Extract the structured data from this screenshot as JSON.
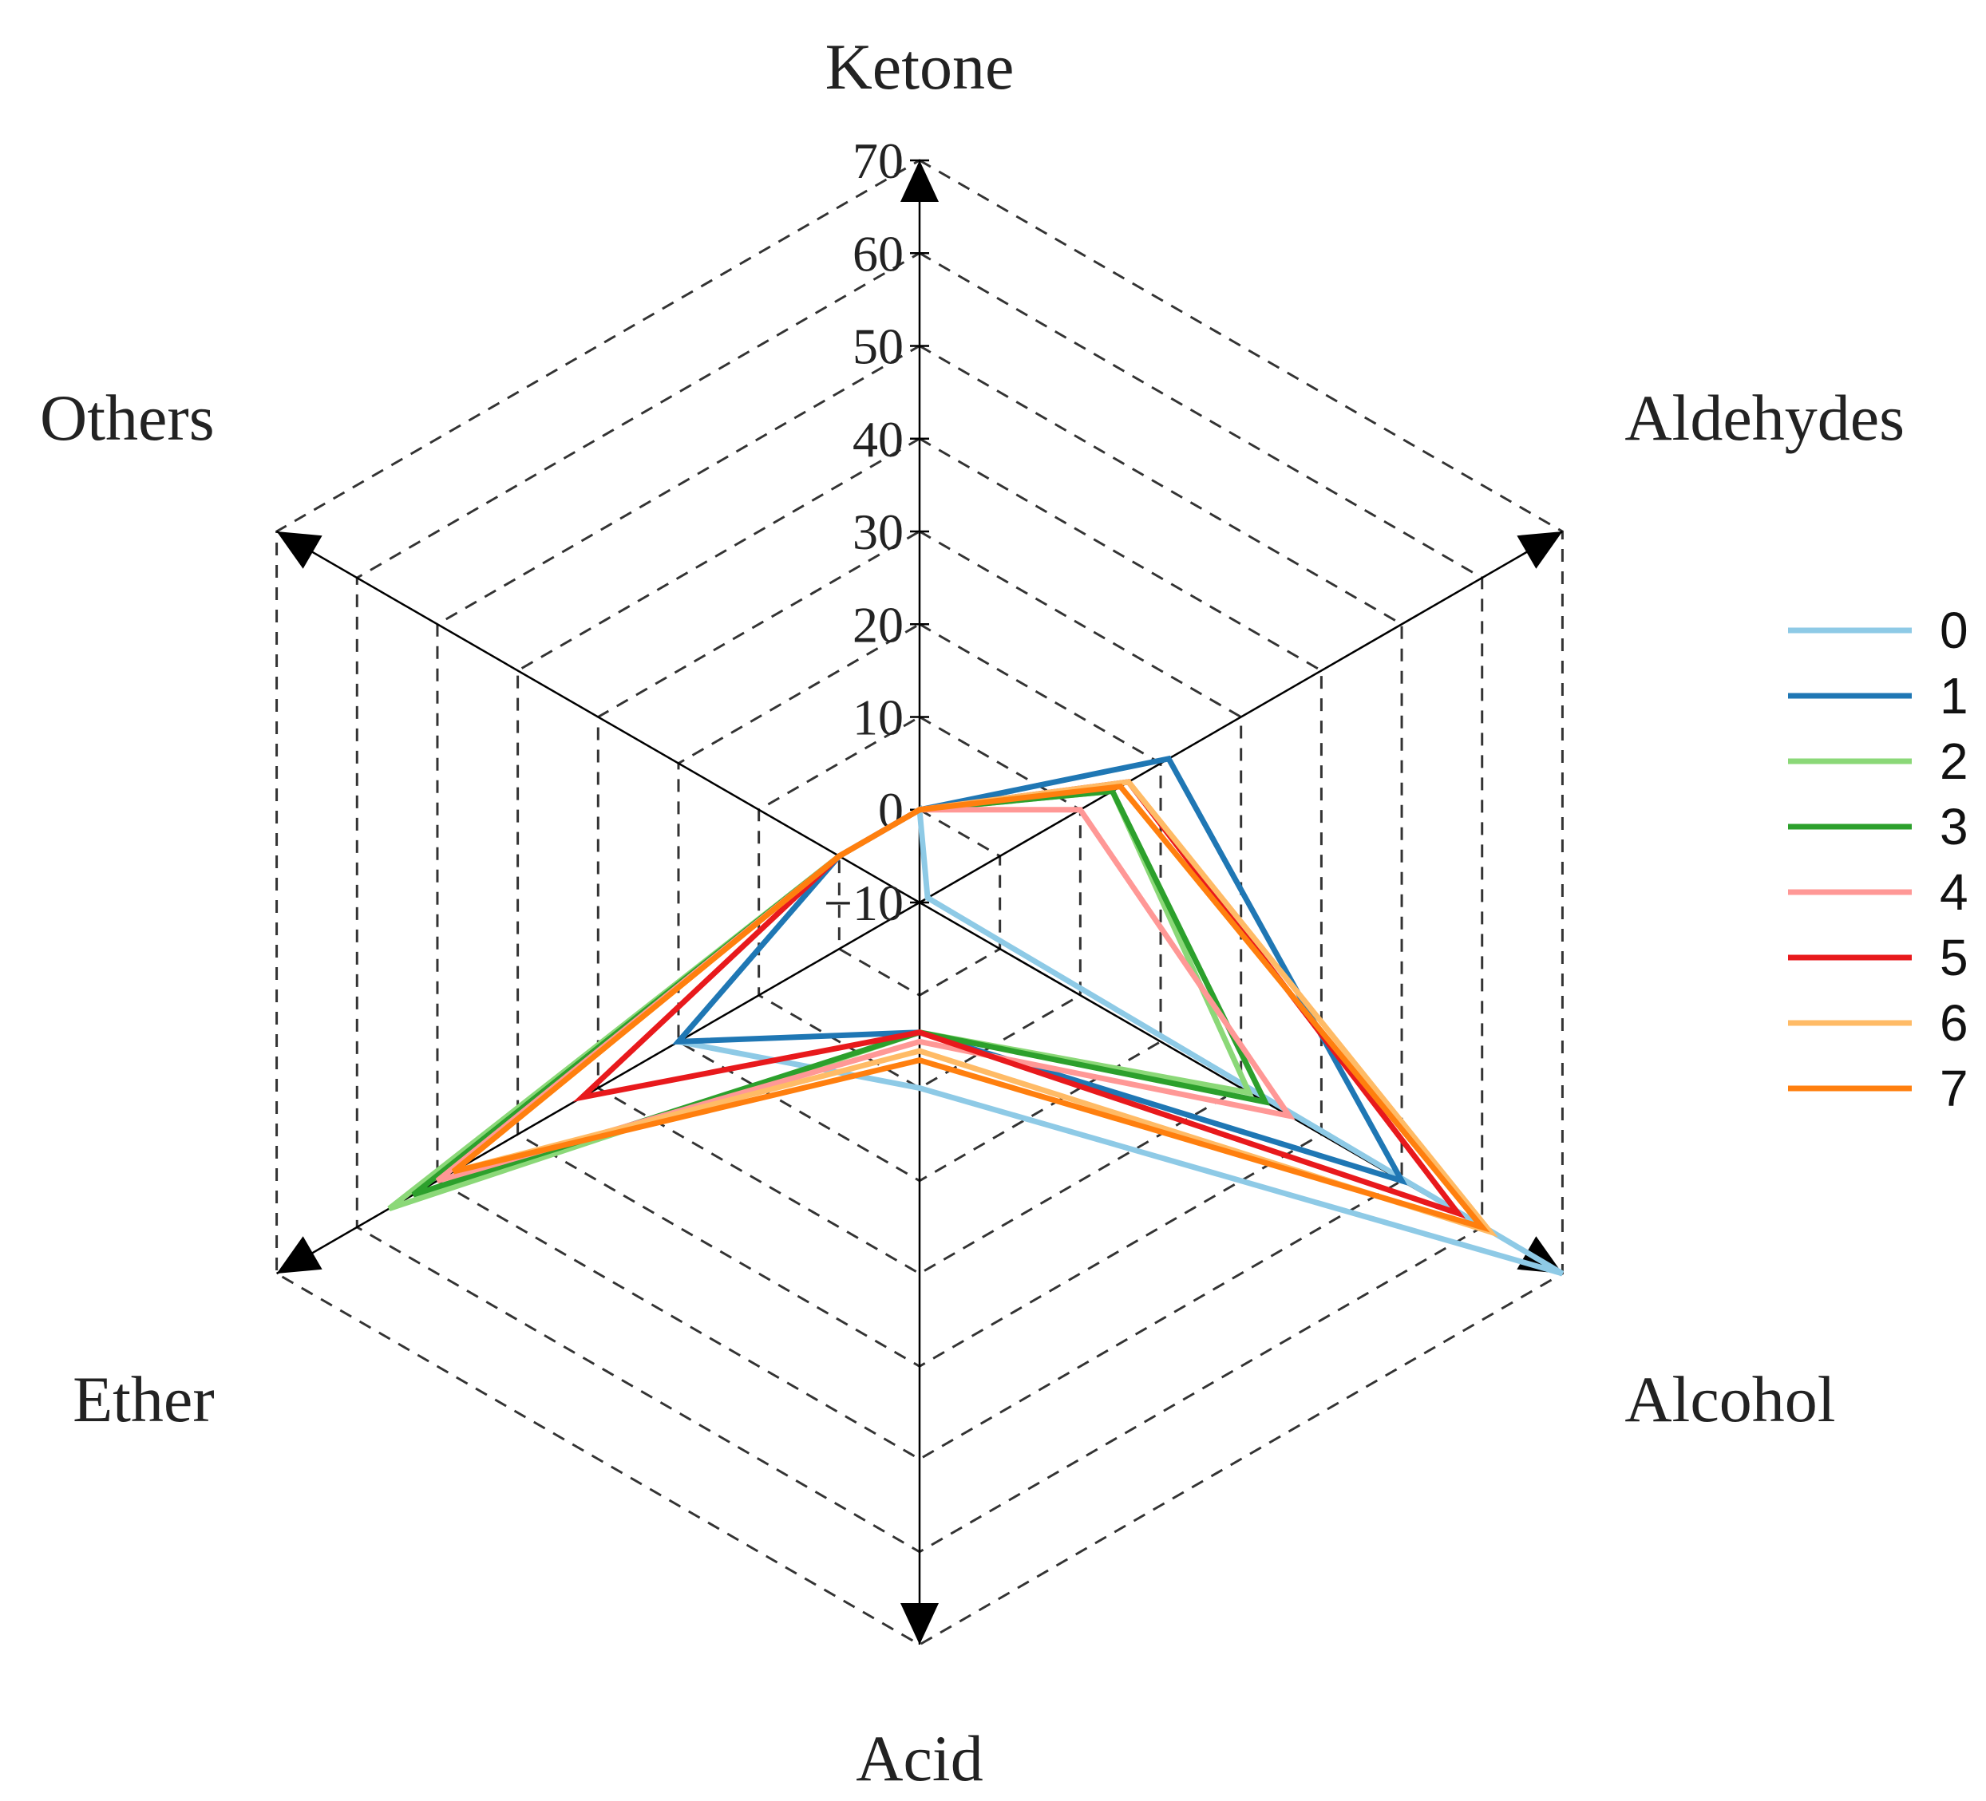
{
  "chart_data": {
    "type": "radar",
    "title": "",
    "axes": [
      "Ketone",
      "Aldehydes",
      "Alcohol",
      "Acid",
      "Ether",
      "Others"
    ],
    "scale": {
      "min": -10,
      "max": 70,
      "step": 10
    },
    "tick_labels": [
      "-10",
      "0",
      "10",
      "20",
      "30",
      "40",
      "50",
      "60",
      "70"
    ],
    "grid": "dashed",
    "legend_position": "right",
    "series": [
      {
        "name": "0",
        "color": "#8ecae6",
        "values": [
          0,
          -9,
          70,
          10,
          20,
          0
        ]
      },
      {
        "name": "1",
        "color": "#1f77b4",
        "values": [
          0,
          21,
          50,
          4,
          20,
          0
        ]
      },
      {
        "name": "2",
        "color": "#8bd878",
        "values": [
          0,
          14,
          31,
          4,
          56,
          0
        ]
      },
      {
        "name": "3",
        "color": "#2ca02c",
        "values": [
          0,
          14,
          33,
          4,
          53,
          0
        ]
      },
      {
        "name": "4",
        "color": "#ff9896",
        "values": [
          0,
          10,
          36,
          5,
          50,
          0
        ]
      },
      {
        "name": "5",
        "color": "#e8191c",
        "values": [
          0,
          16,
          57,
          4,
          32,
          0
        ]
      },
      {
        "name": "6",
        "color": "#ffbb66",
        "values": [
          0,
          16,
          61,
          6,
          48,
          0
        ]
      },
      {
        "name": "7",
        "color": "#ff7f0e",
        "values": [
          0,
          15,
          60,
          7,
          48,
          0
        ]
      }
    ]
  }
}
